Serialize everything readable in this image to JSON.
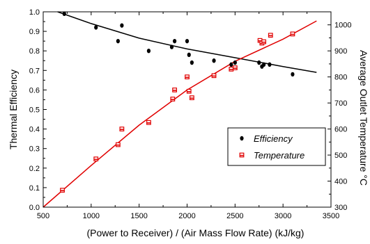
{
  "chart_data": {
    "type": "scatter",
    "xlabel": "(Power to Receiver) / (Air Mass Flow Rate)  (kJ/kg)",
    "ylabel_left": "Thermal Efficiency",
    "ylabel_right": "Average Outlet Temperature °C",
    "xlim": [
      500,
      3500
    ],
    "ylim_left": [
      0.0,
      1.0
    ],
    "ylim_right": [
      300,
      1050
    ],
    "x_ticks": [
      500,
      1000,
      1500,
      2000,
      2500,
      3000,
      3500
    ],
    "y_left_ticks": [
      0.0,
      0.1,
      0.2,
      0.3,
      0.4,
      0.5,
      0.6,
      0.7,
      0.8,
      0.9,
      1.0
    ],
    "y_right_ticks": [
      300,
      400,
      500,
      600,
      700,
      800,
      900,
      1000
    ],
    "grid": false,
    "legend_position": "center-right",
    "series": [
      {
        "name": "Efficiency",
        "axis": "left",
        "marker": "filled-circle",
        "color": "#000000",
        "points": [
          [
            720,
            0.99
          ],
          [
            1050,
            0.92
          ],
          [
            1280,
            0.85
          ],
          [
            1320,
            0.93
          ],
          [
            1600,
            0.8
          ],
          [
            1840,
            0.82
          ],
          [
            1870,
            0.85
          ],
          [
            2000,
            0.85
          ],
          [
            2020,
            0.78
          ],
          [
            2050,
            0.74
          ],
          [
            2280,
            0.75
          ],
          [
            2460,
            0.73
          ],
          [
            2500,
            0.74
          ],
          [
            2750,
            0.74
          ],
          [
            2780,
            0.72
          ],
          [
            2800,
            0.73
          ],
          [
            2860,
            0.73
          ],
          [
            3100,
            0.68
          ]
        ]
      },
      {
        "name": "Temperature",
        "axis": "right",
        "marker": "open-square",
        "color": "#e00000",
        "points": [
          [
            700,
            365
          ],
          [
            1050,
            485
          ],
          [
            1280,
            540
          ],
          [
            1320,
            600
          ],
          [
            1600,
            625
          ],
          [
            1850,
            715
          ],
          [
            1870,
            750
          ],
          [
            2000,
            800
          ],
          [
            2020,
            745
          ],
          [
            2050,
            720
          ],
          [
            2280,
            805
          ],
          [
            2460,
            830
          ],
          [
            2500,
            835
          ],
          [
            2760,
            940
          ],
          [
            2780,
            930
          ],
          [
            2800,
            935
          ],
          [
            2870,
            960
          ],
          [
            3100,
            965
          ]
        ]
      }
    ],
    "fit_lines": [
      {
        "series": "Efficiency",
        "axis": "left",
        "color": "#000000",
        "points": [
          [
            650,
            1.0
          ],
          [
            1000,
            0.94
          ],
          [
            1500,
            0.865
          ],
          [
            2000,
            0.81
          ],
          [
            2500,
            0.765
          ],
          [
            3000,
            0.72
          ],
          [
            3350,
            0.69
          ]
        ]
      },
      {
        "series": "Temperature",
        "axis": "right",
        "color": "#e00000",
        "points": [
          [
            500,
            300
          ],
          [
            1000,
            460
          ],
          [
            1500,
            615
          ],
          [
            2000,
            750
          ],
          [
            2500,
            860
          ],
          [
            3000,
            945
          ],
          [
            3350,
            1015
          ]
        ]
      }
    ]
  }
}
